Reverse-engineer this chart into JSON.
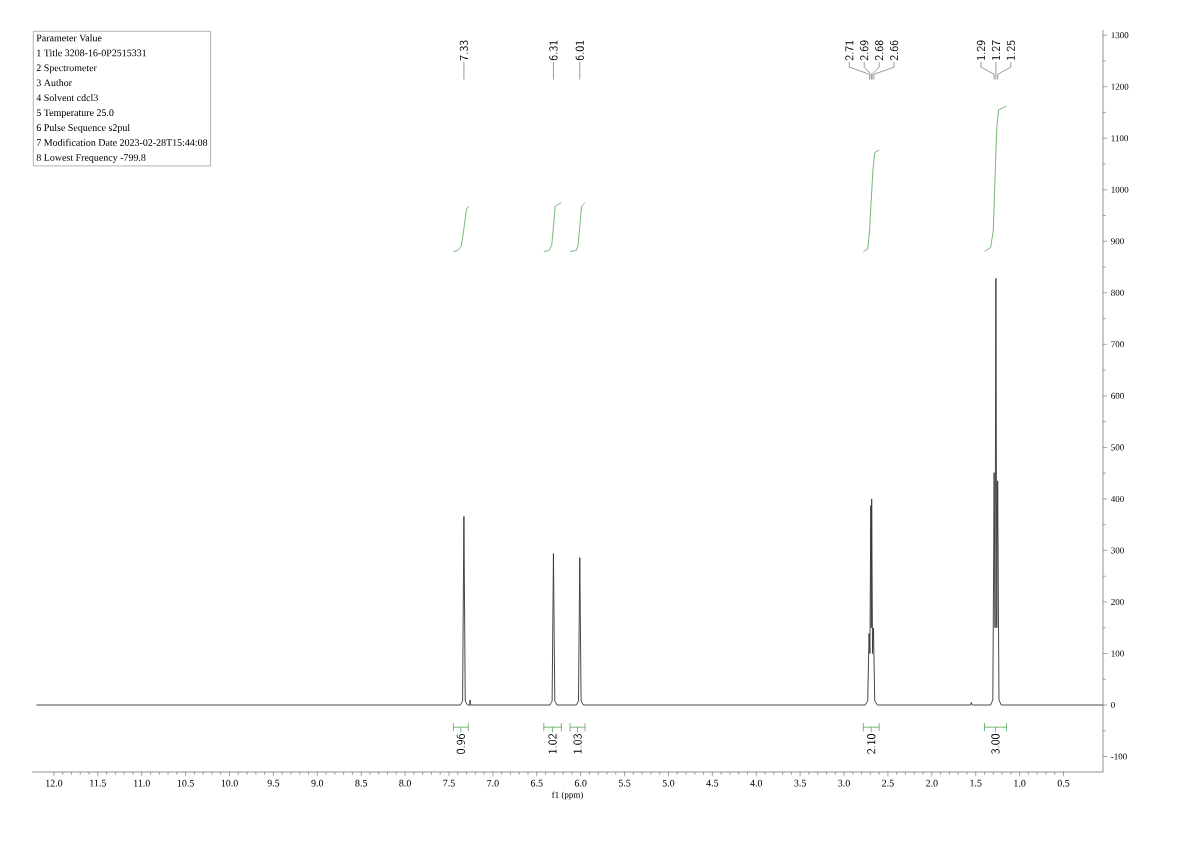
{
  "chart_data": {
    "type": "line",
    "xlabel": "f1 (ppm)",
    "xlim": [
      12.25,
      0.05
    ],
    "ylim": [
      -130,
      1310
    ],
    "xticks": [
      {
        "value": 12,
        "label": "12.0"
      },
      11.5,
      {
        "value": 11,
        "label": "11.0"
      },
      10.5,
      {
        "value": 10,
        "label": "10.0"
      },
      9.5,
      {
        "value": 9,
        "label": "9.0"
      },
      8.5,
      {
        "value": 8,
        "label": "8.0"
      },
      7.5,
      {
        "value": 7,
        "label": "7.0"
      },
      6.5,
      {
        "value": 6,
        "label": "6.0"
      },
      5.5,
      {
        "value": 5,
        "label": "5.0"
      },
      4.5,
      {
        "value": 4,
        "label": "4.0"
      },
      3.5,
      {
        "value": 3,
        "label": "3.0"
      },
      2.5,
      {
        "value": 2,
        "label": "2.0"
      },
      1.5,
      {
        "value": 1,
        "label": "1.0"
      },
      0.5
    ],
    "yticks": [
      -100,
      0,
      100,
      200,
      300,
      400,
      500,
      600,
      700,
      800,
      900,
      1000,
      1100,
      1200,
      1300
    ],
    "series": [
      {
        "color": "#333333",
        "x": [
          12.2,
          7.37,
          7.345,
          7.33,
          7.315,
          7.29,
          7.262,
          7.26,
          7.258,
          6.35,
          6.325,
          6.31,
          6.295,
          6.27,
          6.05,
          6.025,
          6.01,
          5.995,
          5.97,
          2.76,
          2.73,
          2.715,
          2.705,
          2.695,
          2.69,
          2.685,
          2.675,
          2.665,
          2.65,
          2.62,
          1.56,
          1.55,
          1.54,
          1.33,
          1.305,
          1.29,
          1.28,
          1.27,
          1.26,
          1.25,
          1.235,
          1.21,
          0.05
        ],
        "values": [
          0,
          0,
          8,
          366,
          8,
          0,
          0,
          10,
          0,
          0,
          8,
          294,
          8,
          0,
          0,
          8,
          286,
          8,
          0,
          0,
          8,
          139,
          100,
          387,
          150,
          400,
          100,
          149,
          8,
          0,
          0,
          5,
          0,
          0,
          10,
          451,
          150,
          828,
          150,
          435,
          10,
          0,
          0
        ]
      },
      {
        "color": "#3c9a3c",
        "x": [
          7.45,
          7.4,
          7.36,
          7.33,
          7.3,
          7.28
        ],
        "values": [
          880,
          882,
          890,
          925,
          962,
          968
        ]
      },
      {
        "color": "#3c9a3c",
        "x": [
          6.42,
          6.36,
          6.33,
          6.31,
          6.29,
          6.22
        ],
        "values": [
          880,
          882,
          892,
          928,
          968,
          975
        ]
      },
      {
        "color": "#3c9a3c",
        "x": [
          6.12,
          6.05,
          6.03,
          6.01,
          5.99,
          5.95
        ],
        "values": [
          880,
          882,
          892,
          928,
          968,
          975
        ]
      },
      {
        "color": "#3c9a3c",
        "x": [
          2.78,
          2.73,
          2.71,
          2.69,
          2.67,
          2.65,
          2.6
        ],
        "values": [
          880,
          885,
          920,
          980,
          1040,
          1072,
          1077
        ]
      },
      {
        "color": "#3c9a3c",
        "x": [
          1.4,
          1.33,
          1.3,
          1.28,
          1.26,
          1.24,
          1.15
        ],
        "values": [
          880,
          888,
          920,
          1020,
          1120,
          1155,
          1162
        ]
      }
    ],
    "annotations": [
      "Parameter Value",
      "1 Title 3208-16-0P2515331",
      "2 Spectrometer",
      "3 Author",
      "4 Solvent cdcl3",
      "5 Temperature 25.0",
      "6 Pulse Sequence s2pul",
      "7 Modification Date 2023-02-28T15:44:08",
      "8 Lowest Frequency -799.8",
      {
        "text": "7.33",
        "x": 7.33
      },
      {
        "text": "6.31",
        "x": 6.31
      },
      {
        "text": "6.01",
        "x": 6.01
      },
      {
        "text": "2.71",
        "x": 2.71
      },
      {
        "text": "2.69",
        "x": 2.69
      },
      {
        "text": "2.68",
        "x": 2.68
      },
      {
        "text": "2.66",
        "x": 2.66
      },
      {
        "text": "1.29",
        "x": 1.29
      },
      {
        "text": "1.27",
        "x": 1.27
      },
      {
        "text": "1.25",
        "x": 1.25
      },
      "0.96",
      "1.02",
      "1.03",
      "2.10",
      "3.00"
    ]
  }
}
